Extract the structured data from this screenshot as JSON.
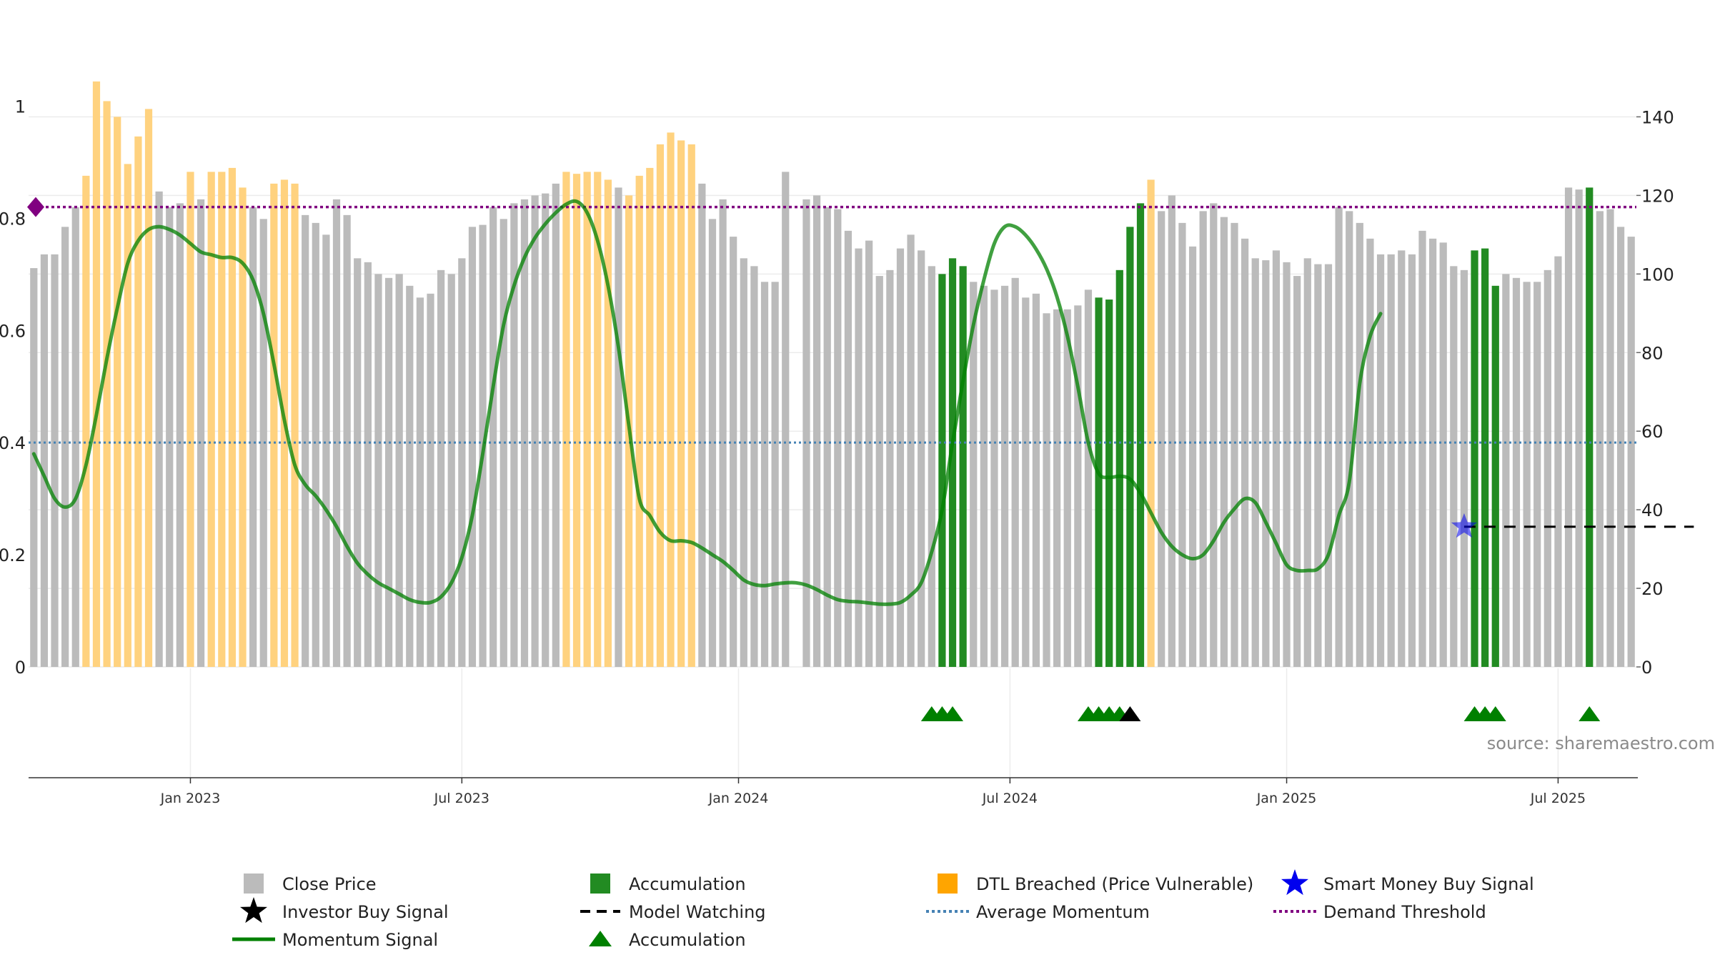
{
  "chart_data": {
    "type": "bar",
    "source_label": "source: sharemaestro.com",
    "x_tick_labels": [
      "Jan 2023",
      "Jul 2023",
      "Jan 2024",
      "Jul 2024",
      "Jan 2025",
      "Jul 2025"
    ],
    "x_tick_weeks": [
      15,
      41,
      67.5,
      93.5,
      120,
      146
    ],
    "left_axis": {
      "ylim": [
        0,
        1.1
      ],
      "ticks": [
        0,
        0.2,
        0.4,
        0.6,
        0.8,
        1
      ],
      "tick_labels": [
        "0",
        "0.2",
        "0.4",
        "0.6",
        "0.8",
        "1"
      ]
    },
    "right_axis": {
      "ylim": [
        0,
        157
      ],
      "ticks": [
        0,
        20,
        40,
        60,
        80,
        100,
        120,
        140
      ],
      "tick_labels": [
        "0",
        "20",
        "40",
        "60",
        "80",
        "100",
        "120",
        "140"
      ]
    },
    "close_price": [
      101.5,
      105,
      105,
      112,
      117,
      125,
      149,
      144,
      140,
      128,
      135,
      142,
      121,
      117,
      118,
      126,
      119,
      126,
      126,
      127,
      122,
      117,
      114,
      123,
      124,
      123,
      115,
      113,
      110,
      119,
      115,
      104,
      103,
      100,
      99,
      100,
      97,
      94,
      95,
      101,
      100,
      104,
      112,
      112.5,
      117,
      114,
      118,
      119,
      120,
      120.5,
      123,
      126,
      125.5,
      126,
      126,
      124,
      122,
      120,
      125,
      127,
      133,
      136,
      134,
      133,
      123,
      114,
      119,
      109.5,
      104,
      102,
      98,
      98,
      126,
      0,
      119,
      120,
      117,
      116.5,
      111,
      106.5,
      108.5,
      99.5,
      101,
      106.5,
      110,
      106,
      102,
      100,
      104,
      102,
      98,
      97,
      96,
      97,
      99,
      94,
      95,
      90,
      91,
      91,
      92,
      96,
      94,
      93.5,
      101,
      112,
      118,
      124,
      116,
      120,
      113,
      107,
      116,
      118,
      114.5,
      113,
      109,
      104,
      103.5,
      106,
      103,
      99.5,
      104,
      102.5,
      102.5,
      117,
      116,
      113,
      109,
      105,
      105,
      106,
      105,
      111,
      109,
      108,
      102,
      101,
      106,
      106.5,
      97,
      100,
      99,
      98,
      98,
      101,
      104.5,
      122,
      121.5,
      122,
      116,
      116.5,
      112,
      109.5
    ],
    "accumulation_weeks": [
      87,
      88,
      89,
      102,
      103,
      104,
      105,
      106,
      138,
      139,
      140,
      149
    ],
    "dtl_breached_weeks": [
      5,
      6,
      7,
      8,
      9,
      10,
      11,
      15,
      17,
      18,
      19,
      20,
      23,
      24,
      25,
      51,
      52,
      53,
      54,
      55,
      57,
      58,
      59,
      60,
      61,
      62,
      63,
      107
    ],
    "momentum_signal": [
      0.38,
      0.34,
      0.3,
      0.285,
      0.3,
      0.36,
      0.45,
      0.55,
      0.64,
      0.72,
      0.76,
      0.78,
      0.785,
      0.78,
      0.77,
      0.755,
      0.74,
      0.735,
      0.73,
      0.73,
      0.72,
      0.69,
      0.63,
      0.54,
      0.44,
      0.36,
      0.325,
      0.305,
      0.28,
      0.25,
      0.215,
      0.185,
      0.165,
      0.15,
      0.14,
      0.13,
      0.12,
      0.115,
      0.115,
      0.125,
      0.15,
      0.195,
      0.27,
      0.38,
      0.5,
      0.61,
      0.68,
      0.73,
      0.765,
      0.79,
      0.81,
      0.825,
      0.83,
      0.81,
      0.76,
      0.68,
      0.57,
      0.43,
      0.3,
      0.27,
      0.24,
      0.225,
      0.225,
      0.222,
      0.212,
      0.2,
      0.188,
      0.172,
      0.155,
      0.147,
      0.145,
      0.148,
      0.15,
      0.15,
      0.146,
      0.138,
      0.128,
      0.12,
      0.117,
      0.116,
      0.114,
      0.112,
      0.112,
      0.115,
      0.128,
      0.15,
      0.205,
      0.28,
      0.4,
      0.51,
      0.61,
      0.69,
      0.755,
      0.785,
      0.785,
      0.77,
      0.745,
      0.71,
      0.66,
      0.59,
      0.5,
      0.4,
      0.345,
      0.338,
      0.34,
      0.335,
      0.31,
      0.275,
      0.24,
      0.215,
      0.2,
      0.193,
      0.2,
      0.225,
      0.258,
      0.282,
      0.3,
      0.293,
      0.258,
      0.22,
      0.182,
      0.172,
      0.172,
      0.175,
      0.2,
      0.27,
      0.33,
      0.505,
      0.59,
      0.63
    ],
    "average_momentum": 0.4,
    "demand_threshold": 0.82,
    "smart_money_buy_signal": {
      "week": 137,
      "value": 0.25
    },
    "model_watching": {
      "from_week": 137,
      "to_week": 159,
      "value": 0.25
    },
    "signal_markers": {
      "accumulation_weeks": [
        86,
        87,
        88,
        101,
        102,
        103,
        104,
        138,
        139,
        140,
        149
      ],
      "investor_buy_weeks": [
        105
      ]
    },
    "legend": [
      {
        "label": "Close Price",
        "symbol": "square",
        "color": "#bbbbbb"
      },
      {
        "label": "Accumulation",
        "symbol": "square",
        "color": "#228b22"
      },
      {
        "label": "DTL Breached (Price Vulnerable)",
        "symbol": "square",
        "color": "#ffa500"
      },
      {
        "label": "Smart Money Buy Signal",
        "symbol": "star",
        "color": "#0000ee"
      },
      {
        "label": "Investor Buy Signal",
        "symbol": "star",
        "color": "#000000"
      },
      {
        "label": "Model Watching",
        "symbol": "dash",
        "color": "#000000"
      },
      {
        "label": "Average Momentum",
        "symbol": "dot",
        "color": "#4682b4"
      },
      {
        "label": "Demand Threshold",
        "symbol": "dot",
        "color": "#800080"
      },
      {
        "label": "Momentum Signal",
        "symbol": "line",
        "color": "#008000"
      },
      {
        "label": "Accumulation",
        "symbol": "triangle",
        "color": "#008000"
      }
    ],
    "colors": {
      "close_bar": "#bbbbbb",
      "accumulation_bar": "#228b22",
      "dtl_bar": "#ffd27f",
      "momentum": "#008000",
      "average_momentum": "#4682b4",
      "demand_threshold": "#800080",
      "smart_money_star": "#0000ee",
      "investor_triangle": "#000000",
      "accumulation_triangle": "#008000"
    }
  }
}
